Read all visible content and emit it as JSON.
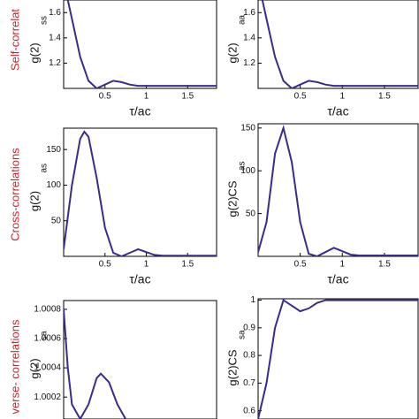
{
  "row_labels": [
    "Self-correlat",
    "Cross-correlations",
    "verse- correlations"
  ],
  "chart_data": [
    {
      "type": "line",
      "ylabel": "g(2)",
      "ylabel_sub": "ss",
      "xlabel": "τ/ac",
      "xlim": [
        0,
        1.85
      ],
      "ylim": [
        1.0,
        1.7
      ],
      "xticks": [
        0.5,
        1,
        1.5
      ],
      "yticks": [
        1.2,
        1.4,
        1.6
      ],
      "color": "#3b2c8c",
      "x": [
        0.05,
        0.1,
        0.2,
        0.3,
        0.4,
        0.5,
        0.6,
        0.7,
        0.8,
        0.9,
        1.0,
        1.2,
        1.4,
        1.6,
        1.85
      ],
      "values": [
        1.7,
        1.55,
        1.25,
        1.06,
        1.0,
        1.03,
        1.06,
        1.05,
        1.03,
        1.02,
        1.02,
        1.02,
        1.02,
        1.02,
        1.02
      ]
    },
    {
      "type": "line",
      "ylabel": "g(2)",
      "ylabel_sub": "aa",
      "xlabel": "τ/ac",
      "xlim": [
        0,
        1.9
      ],
      "ylim": [
        1.0,
        1.7
      ],
      "xticks": [
        0.5,
        1,
        1.5
      ],
      "yticks": [
        1.2,
        1.4,
        1.6
      ],
      "color": "#3b2c8c",
      "x": [
        0.05,
        0.1,
        0.2,
        0.3,
        0.4,
        0.5,
        0.6,
        0.7,
        0.8,
        0.9,
        1.0,
        1.2,
        1.4,
        1.6,
        1.9
      ],
      "values": [
        1.7,
        1.55,
        1.25,
        1.06,
        1.0,
        1.03,
        1.06,
        1.05,
        1.03,
        1.02,
        1.02,
        1.02,
        1.02,
        1.02,
        1.02
      ]
    },
    {
      "type": "line",
      "ylabel": "g(2)",
      "ylabel_sub": "as",
      "xlabel": "τ/ac",
      "xlim": [
        0,
        1.85
      ],
      "ylim": [
        0,
        180
      ],
      "xticks": [
        0.5,
        1,
        1.5
      ],
      "yticks": [
        50,
        100,
        150
      ],
      "color": "#3b2c8c",
      "x": [
        0,
        0.1,
        0.2,
        0.25,
        0.3,
        0.4,
        0.5,
        0.6,
        0.7,
        0.8,
        0.9,
        1.0,
        1.1,
        1.2,
        1.5,
        1.85
      ],
      "values": [
        10,
        100,
        165,
        175,
        168,
        110,
        40,
        5,
        0,
        5,
        10,
        6,
        2,
        1,
        1,
        1
      ]
    },
    {
      "type": "line",
      "ylabel": "g(2)CS",
      "ylabel_sub": "as",
      "xlabel": "τ/ac",
      "xlim": [
        0,
        1.9
      ],
      "ylim": [
        0,
        155
      ],
      "xticks": [
        0.5,
        1,
        1.5
      ],
      "yticks": [
        50,
        100,
        150
      ],
      "color": "#3b2c8c",
      "x": [
        0,
        0.1,
        0.2,
        0.3,
        0.4,
        0.5,
        0.6,
        0.7,
        0.8,
        0.9,
        1.0,
        1.1,
        1.2,
        1.5,
        1.9
      ],
      "values": [
        5,
        40,
        120,
        150,
        110,
        40,
        3,
        0,
        5,
        10,
        6,
        2,
        1,
        1,
        1
      ]
    },
    {
      "type": "line",
      "ylabel": "g(2)",
      "ylabel_sub": "sa",
      "xlim": [
        0,
        1.85
      ],
      "ylim": [
        1.00005,
        1.00086
      ],
      "yticks": [
        1.0002,
        1.0004,
        1.0006,
        1.0008
      ],
      "color": "#3b2c8c",
      "x": [
        0,
        0.05,
        0.1,
        0.2,
        0.3,
        0.4,
        0.45,
        0.55,
        0.65,
        0.75
      ],
      "values": [
        1.0008,
        1.0004,
        1.00015,
        1.00005,
        1.00015,
        1.00033,
        1.00036,
        1.0003,
        1.00015,
        1.00005
      ]
    },
    {
      "type": "line",
      "ylabel": "g(2)CS",
      "ylabel_sub": "sa",
      "xlim": [
        0,
        1.9
      ],
      "ylim": [
        0.57,
        1.005
      ],
      "yticks": [
        0.6,
        0.7,
        0.8,
        0.9,
        1
      ],
      "color": "#3b2c8c",
      "x": [
        0,
        0.1,
        0.2,
        0.3,
        0.4,
        0.5,
        0.6,
        0.7,
        0.8,
        1.0,
        1.9
      ],
      "values": [
        0.57,
        0.7,
        0.9,
        1.0,
        0.98,
        0.96,
        0.97,
        0.99,
        1.0,
        1.0,
        1.0
      ]
    }
  ]
}
